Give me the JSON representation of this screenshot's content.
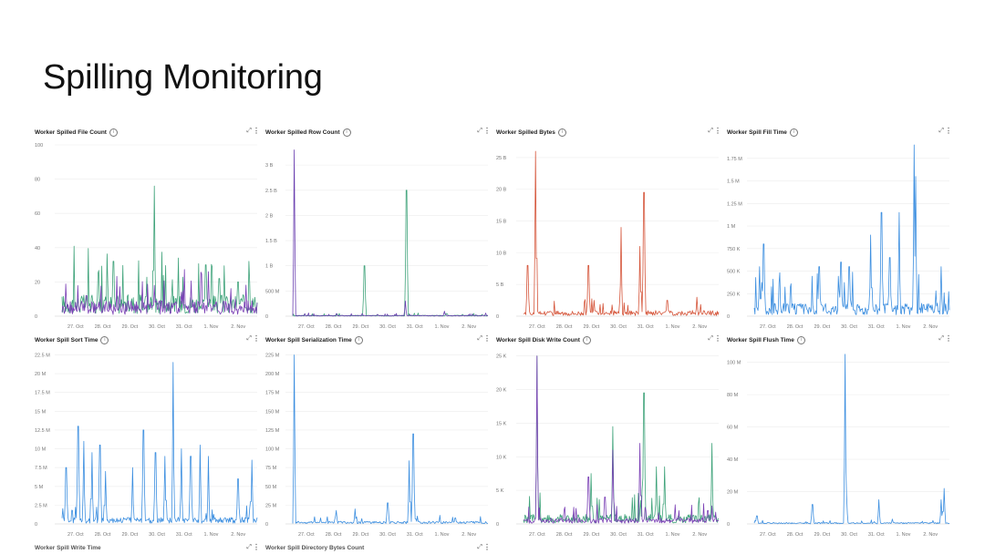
{
  "slide": {
    "title": "Spilling Monitoring"
  },
  "icons": {
    "info": "ⓘ",
    "expand": "⤢",
    "menu": "⋮"
  },
  "chart_data": [
    {
      "type": "line",
      "title": "Worker Spilled File Count",
      "x_ticks": [
        "27. Oct",
        "28. Oct",
        "29. Oct",
        "30. Oct",
        "31. Oct",
        "1. Nov",
        "2. Nov"
      ],
      "y_ticks": [
        "0",
        "20",
        "40",
        "60",
        "80",
        "100"
      ],
      "ylim": [
        0,
        100
      ],
      "series": [
        {
          "name": "green",
          "color": "#3fa37a",
          "baseline": 7,
          "spikes": [
            [
              1.9,
              32
            ],
            [
              3.4,
              76
            ],
            [
              5.3,
              30
            ],
            [
              5.8,
              22
            ],
            [
              6.5,
              20
            ]
          ]
        },
        {
          "name": "purple",
          "color": "#7a3fb5",
          "baseline": 5,
          "spikes": [
            [
              0.9,
              12
            ],
            [
              3.4,
              18
            ],
            [
              4.4,
              14
            ],
            [
              5.4,
              26
            ],
            [
              6.4,
              10
            ]
          ]
        }
      ]
    },
    {
      "type": "line",
      "title": "Worker Spilled Row Count",
      "x_ticks": [
        "27. Oct",
        "28. Oct",
        "29. Oct",
        "30. Oct",
        "31. Oct",
        "1. Nov",
        "2. Nov"
      ],
      "y_ticks": [
        "0",
        "500 M",
        "1 B",
        "1.5 B",
        "2 B",
        "2.5 B",
        "3 B"
      ],
      "ylim": [
        0,
        3.4
      ],
      "series": [
        {
          "name": "green",
          "color": "#3fa37a",
          "baseline": 0.01,
          "spikes": [
            [
              2.65,
              1.0
            ],
            [
              4.2,
              2.5
            ]
          ]
        },
        {
          "name": "purple",
          "color": "#6a3fb0",
          "baseline": 0.01,
          "spikes": [
            [
              0.05,
              3.3
            ],
            [
              4.15,
              0.3
            ],
            [
              5.6,
              0.1
            ]
          ]
        }
      ]
    },
    {
      "type": "line",
      "title": "Worker Spilled Bytes",
      "x_ticks": [
        "27. Oct",
        "28. Oct",
        "29. Oct",
        "30. Oct",
        "31. Oct",
        "1. Nov",
        "2. Nov"
      ],
      "y_ticks": [
        "0",
        "5 B",
        "10 B",
        "15 B",
        "20 B",
        "25 B"
      ],
      "ylim": [
        0,
        27
      ],
      "series": [
        {
          "name": "orange",
          "color": "#d5553a",
          "baseline": 0.5,
          "spikes": [
            [
              0.15,
              8
            ],
            [
              0.45,
              26
            ],
            [
              2.4,
              8
            ],
            [
              2.6,
              2.5
            ],
            [
              3.6,
              14
            ],
            [
              4.3,
              11
            ],
            [
              4.45,
              19.5
            ],
            [
              5.3,
              2.5
            ],
            [
              6.4,
              3
            ]
          ]
        }
      ]
    },
    {
      "type": "line",
      "title": "Worker Spill Fill Time",
      "x_ticks": [
        "27. Oct",
        "28. Oct",
        "29. Oct",
        "30. Oct",
        "31. Oct",
        "1. Nov",
        "2. Nov"
      ],
      "y_ticks": [
        "0",
        "250 K",
        "500 K",
        "750 K",
        "1 M",
        "1.25 M",
        "1.5 M",
        "1.75 M"
      ],
      "ylim": [
        0,
        1.9
      ],
      "series": [
        {
          "name": "blue",
          "color": "#3d8fe0",
          "baseline": 0.08,
          "spikes": [
            [
              0.2,
              0.55
            ],
            [
              0.35,
              0.8
            ],
            [
              2.4,
              0.55
            ],
            [
              3.2,
              0.6
            ],
            [
              3.5,
              0.55
            ],
            [
              4.3,
              0.9
            ],
            [
              4.7,
              1.15
            ],
            [
              5.0,
              0.65
            ],
            [
              5.35,
              1.15
            ],
            [
              5.9,
              1.9
            ],
            [
              5.95,
              1.55
            ],
            [
              6.9,
              0.55
            ]
          ]
        }
      ]
    },
    {
      "type": "line",
      "title": "Worker Spill Sort Time",
      "x_ticks": [
        "27. Oct",
        "28. Oct",
        "29. Oct",
        "30. Oct",
        "31. Oct",
        "1. Nov",
        "2. Nov"
      ],
      "y_ticks": [
        "0",
        "2.5 M",
        "5 M",
        "7.5 M",
        "10 M",
        "12.5 M",
        "15 M",
        "17.5 M",
        "20 M",
        "22.5 M"
      ],
      "ylim": [
        0,
        22.8
      ],
      "series": [
        {
          "name": "blue",
          "color": "#3d8fe0",
          "baseline": 0.5,
          "spikes": [
            [
              0.15,
              7.5
            ],
            [
              0.6,
              13
            ],
            [
              0.8,
              11
            ],
            [
              1.1,
              9.5
            ],
            [
              1.4,
              10.5
            ],
            [
              1.6,
              7
            ],
            [
              2.6,
              7.5
            ],
            [
              3.0,
              12.5
            ],
            [
              3.45,
              9.5
            ],
            [
              3.8,
              9
            ],
            [
              4.1,
              21.5
            ],
            [
              4.4,
              10
            ],
            [
              4.75,
              9
            ],
            [
              5.1,
              10.5
            ],
            [
              5.4,
              9
            ],
            [
              6.5,
              6
            ],
            [
              7.0,
              8.5
            ]
          ]
        }
      ]
    },
    {
      "type": "line",
      "title": "Worker Spill Serialization Time",
      "x_ticks": [
        "27. Oct",
        "28. Oct",
        "29. Oct",
        "30. Oct",
        "31. Oct",
        "1. Nov",
        "2. Nov"
      ],
      "y_ticks": [
        "0",
        "25 M",
        "50 M",
        "75 M",
        "100 M",
        "125 M",
        "150 M",
        "175 M",
        "200 M",
        "225 M"
      ],
      "ylim": [
        0,
        228
      ],
      "series": [
        {
          "name": "blue",
          "color": "#3d8fe0",
          "baseline": 2,
          "spikes": [
            [
              0.05,
              225
            ],
            [
              1.6,
              18
            ],
            [
              2.3,
              20
            ],
            [
              3.5,
              28
            ],
            [
              4.3,
              84
            ],
            [
              4.45,
              120
            ],
            [
              6.0,
              8
            ]
          ]
        }
      ]
    },
    {
      "type": "line",
      "title": "Worker Spill Disk Write Count",
      "x_ticks": [
        "27. Oct",
        "28. Oct",
        "29. Oct",
        "30. Oct",
        "31. Oct",
        "1. Nov",
        "2. Nov"
      ],
      "y_ticks": [
        "0",
        "5 K",
        "10 K",
        "15 K",
        "20 K",
        "25 K"
      ],
      "ylim": [
        0,
        25.5
      ],
      "series": [
        {
          "name": "green",
          "color": "#3fa37a",
          "baseline": 0.8,
          "spikes": [
            [
              0.5,
              25
            ],
            [
              2.5,
              7.5
            ],
            [
              3.3,
              14.5
            ],
            [
              4.45,
              19.5
            ],
            [
              4.9,
              8.5
            ],
            [
              5.2,
              8.5
            ],
            [
              6.95,
              12
            ]
          ]
        },
        {
          "name": "purple",
          "color": "#7a3fb5",
          "baseline": 0.5,
          "spikes": [
            [
              0.5,
              25
            ],
            [
              2.4,
              7
            ],
            [
              3.0,
              4
            ],
            [
              3.3,
              11
            ],
            [
              4.3,
              12
            ],
            [
              6.8,
              2
            ]
          ]
        }
      ]
    },
    {
      "type": "line",
      "title": "Worker Spill Flush Time",
      "x_ticks": [
        "27. Oct",
        "28. Oct",
        "29. Oct",
        "30. Oct",
        "31. Oct",
        "1. Nov",
        "2. Nov"
      ],
      "y_ticks": [
        "0",
        "20 M",
        "40 M",
        "60 M",
        "80 M",
        "100 M"
      ],
      "ylim": [
        0,
        106
      ],
      "series": [
        {
          "name": "blue",
          "color": "#3d8fe0",
          "baseline": 0.5,
          "spikes": [
            [
              0.1,
              5
            ],
            [
              2.15,
              12
            ],
            [
              3.35,
              105
            ],
            [
              3.4,
              18
            ],
            [
              4.6,
              15
            ],
            [
              5.1,
              3
            ],
            [
              6.9,
              15
            ],
            [
              7.0,
              22
            ]
          ]
        }
      ]
    }
  ],
  "footer_titles": [
    "Worker Spill Write Time",
    "Worker Spill Directory Bytes Count"
  ]
}
